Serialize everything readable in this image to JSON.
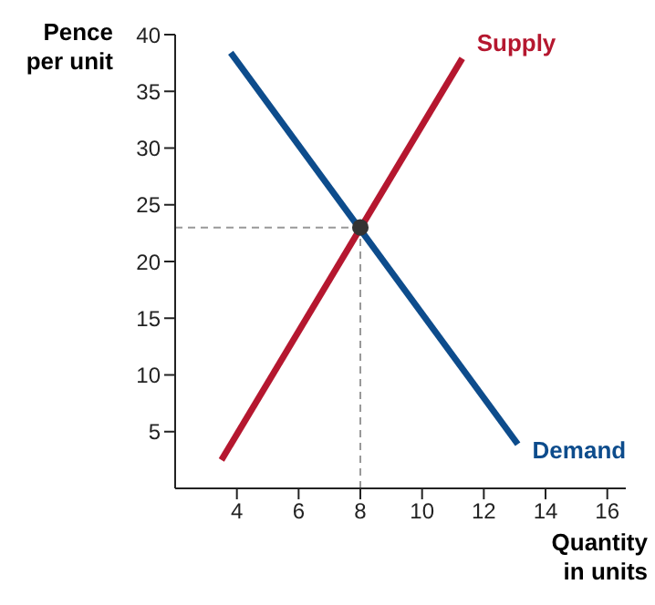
{
  "chart_data": {
    "type": "line",
    "xlabel": "Quantity\nin units",
    "ylabel": "Pence\nper unit",
    "xlim": [
      2,
      16.6
    ],
    "xticks": [
      4,
      6,
      8,
      10,
      12,
      14,
      16
    ],
    "ylim": [
      0,
      40
    ],
    "yticks": [
      5,
      10,
      15,
      20,
      25,
      30,
      35,
      40
    ],
    "grid": false,
    "legend": false,
    "line_style": "solid",
    "series": [
      {
        "name": "Supply",
        "color": "#b5172f",
        "marker": "none",
        "x": [
          3.5,
          11.3
        ],
        "values": [
          2.5,
          37.9
        ]
      },
      {
        "name": "Demand",
        "color": "#0d4c8c",
        "marker": "none",
        "x": [
          3.8,
          13.1
        ],
        "values": [
          38.4,
          3.9
        ]
      },
      {
        "type": "scatter",
        "color": "#333333",
        "marker": "circle",
        "x": [
          8
        ],
        "values": [
          23
        ]
      }
    ],
    "ref_lines": [
      {
        "axis": "x",
        "value": 8,
        "color": "#999999",
        "line_style": "dashed"
      },
      {
        "axis": "y",
        "value": 23,
        "color": "#999999",
        "line_style": "dashed"
      }
    ]
  }
}
